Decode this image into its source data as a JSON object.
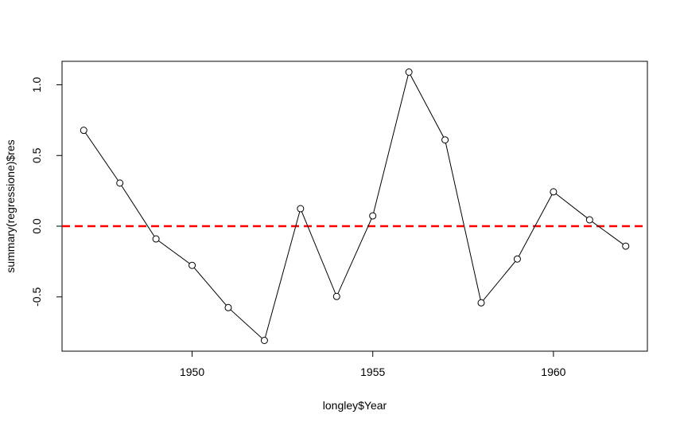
{
  "chart_data": {
    "type": "line",
    "xlabel": "longley$Year",
    "ylabel": "summary(regressione)$res",
    "x": [
      1947,
      1948,
      1949,
      1950,
      1951,
      1952,
      1953,
      1954,
      1955,
      1956,
      1957,
      1958,
      1959,
      1960,
      1961,
      1962
    ],
    "series": [
      {
        "color": "#000000",
        "values": [
          0.678,
          0.305,
          -0.09,
          -0.277,
          -0.576,
          -0.808,
          0.124,
          -0.497,
          0.073,
          1.09,
          0.61,
          -0.542,
          -0.232,
          0.243,
          0.045,
          -0.141
        ]
      }
    ],
    "xlim": [
      1946.4,
      1962.6
    ],
    "xticks": [
      1950,
      1955,
      1960
    ],
    "ylim": [
      -0.884,
      1.166
    ],
    "yticks": [
      -0.5,
      {
        "value": 0,
        "label": "0.0"
      },
      0.5,
      {
        "value": 1,
        "label": "1.0"
      }
    ],
    "hline": {
      "value": 0,
      "color": "#ff0000"
    }
  }
}
